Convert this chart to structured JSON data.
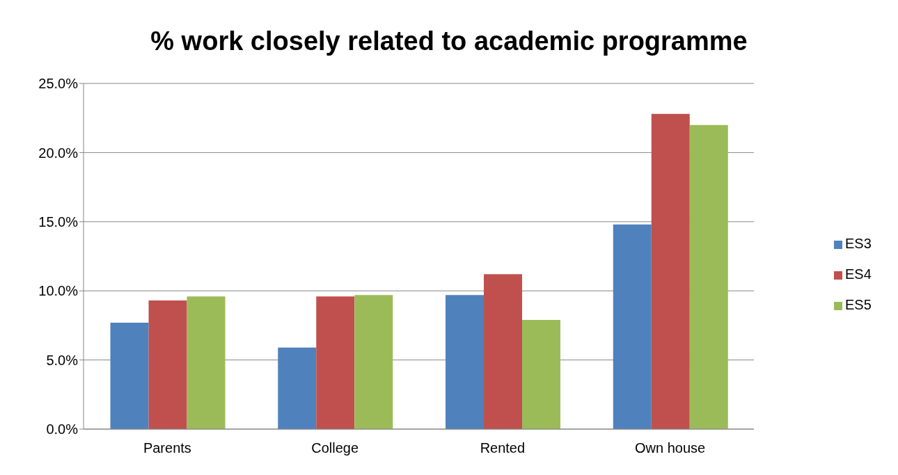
{
  "chart_data": {
    "type": "bar",
    "title": "% work closely related to academic programme",
    "categories": [
      "Parents",
      "College",
      "Rented",
      "Own house"
    ],
    "series": [
      {
        "name": "ES3",
        "color": "#4f81bd",
        "values": [
          7.7,
          5.9,
          9.7,
          14.8
        ]
      },
      {
        "name": "ES4",
        "color": "#c0504d",
        "values": [
          9.3,
          9.6,
          11.2,
          22.8
        ]
      },
      {
        "name": "ES5",
        "color": "#9bbb59",
        "values": [
          9.6,
          9.7,
          7.9,
          22.0
        ]
      }
    ],
    "ylim": [
      0,
      25
    ],
    "yticks": [
      {
        "value": 0,
        "label": "0.0%"
      },
      {
        "value": 5,
        "label": "5.0%"
      },
      {
        "value": 10,
        "label": "10.0%"
      },
      {
        "value": 15,
        "label": "15.0%"
      },
      {
        "value": 20,
        "label": "20.0%"
      },
      {
        "value": 25,
        "label": "25.0%"
      }
    ],
    "grid": "y",
    "legend": "right"
  }
}
